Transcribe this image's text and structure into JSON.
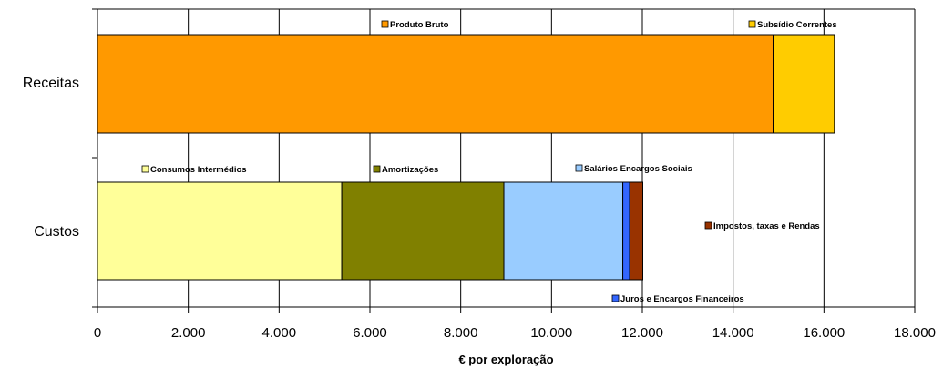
{
  "chart_data": {
    "type": "bar",
    "orientation": "horizontal",
    "stacked": true,
    "categories": [
      "Receitas",
      "Custos"
    ],
    "series": [
      {
        "name": "Produto Bruto",
        "category": "Receitas",
        "value": 14880,
        "color": "#FF9900"
      },
      {
        "name": "Subsídio Correntes",
        "category": "Receitas",
        "value": 1350,
        "color": "#FFCC00"
      },
      {
        "name": "Consumos Intermédios",
        "category": "Custos",
        "value": 5380,
        "color": "#FFFF99"
      },
      {
        "name": "Amortizações",
        "category": "Custos",
        "value": 3570,
        "color": "#808000"
      },
      {
        "name": "Salários Encargos Sociais",
        "category": "Custos",
        "value": 2620,
        "color": "#99CCFF"
      },
      {
        "name": "Juros e Encargos Financeiros",
        "category": "Custos",
        "value": 150,
        "color": "#3366FF"
      },
      {
        "name": "Impostos, taxas e Rendas",
        "category": "Custos",
        "value": 290,
        "color": "#993300"
      }
    ],
    "xlim": [
      0,
      18000
    ],
    "x_ticks": [
      0,
      2000,
      4000,
      6000,
      8000,
      10000,
      12000,
      14000,
      16000,
      18000
    ],
    "x_tick_labels": [
      "0",
      "2.000",
      "4.000",
      "6.000",
      "8.000",
      "10.000",
      "12.000",
      "14.000",
      "16.000",
      "18.000"
    ],
    "xlabel": "€ por exploração",
    "ylabel": "",
    "grid": "vertical",
    "legend": "inline labels"
  }
}
